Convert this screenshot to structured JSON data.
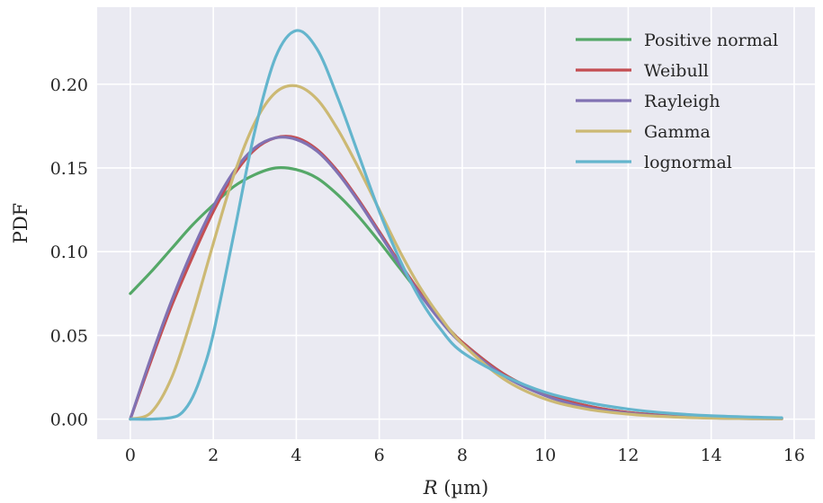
{
  "chart_data": {
    "type": "line",
    "xlabel_var": "R",
    "xlabel_unit": " (µm)",
    "ylabel": "PDF",
    "xlim": [
      -0.8,
      16.5
    ],
    "ylim": [
      -0.012,
      0.246
    ],
    "xticks": [
      0,
      2,
      4,
      6,
      8,
      10,
      12,
      14,
      16
    ],
    "yticks": [
      0.0,
      0.05,
      0.1,
      0.15,
      0.2
    ],
    "ytick_labels": [
      "0.00",
      "0.05",
      "0.10",
      "0.15",
      "0.20"
    ],
    "grid": true,
    "background": "#eaeaf2",
    "grid_color": "#ffffff",
    "legend_position": "top-right",
    "series": [
      {
        "name": "Positive normal",
        "color": "#55a868",
        "x": [
          0,
          0.5,
          1,
          1.5,
          2,
          2.5,
          3,
          3.5,
          4,
          4.5,
          5,
          5.5,
          6,
          6.5,
          7,
          7.5,
          8,
          9,
          10,
          11,
          12,
          13,
          14,
          15,
          15.7
        ],
        "y": [
          0.075,
          0.088,
          0.102,
          0.116,
          0.128,
          0.139,
          0.146,
          0.15,
          0.149,
          0.144,
          0.134,
          0.121,
          0.106,
          0.09,
          0.074,
          0.059,
          0.046,
          0.027,
          0.015,
          0.008,
          0.004,
          0.002,
          0.001,
          0.0005,
          0.0003
        ]
      },
      {
        "name": "Weibull",
        "color": "#c44e52",
        "x": [
          0,
          0.5,
          1,
          1.5,
          2,
          2.5,
          3,
          3.5,
          4,
          4.5,
          5,
          5.5,
          6,
          6.5,
          7,
          7.5,
          8,
          9,
          10,
          11,
          12,
          13,
          14,
          15,
          15.7
        ],
        "y": [
          0.0,
          0.035,
          0.068,
          0.097,
          0.124,
          0.146,
          0.161,
          0.168,
          0.168,
          0.161,
          0.148,
          0.131,
          0.112,
          0.093,
          0.075,
          0.059,
          0.046,
          0.027,
          0.015,
          0.008,
          0.004,
          0.002,
          0.001,
          0.0005,
          0.0003
        ]
      },
      {
        "name": "Rayleigh",
        "color": "#8172b3",
        "x": [
          0,
          0.5,
          1,
          1.5,
          2,
          2.5,
          3,
          3.5,
          4,
          4.5,
          5,
          5.5,
          6,
          6.5,
          7,
          7.5,
          8,
          9,
          10,
          11,
          12,
          13,
          14,
          15,
          15.7
        ],
        "y": [
          0.0,
          0.037,
          0.071,
          0.101,
          0.127,
          0.148,
          0.162,
          0.168,
          0.167,
          0.16,
          0.147,
          0.13,
          0.111,
          0.092,
          0.074,
          0.058,
          0.045,
          0.026,
          0.014,
          0.007,
          0.0035,
          0.0016,
          0.0007,
          0.0003,
          0.0001
        ]
      },
      {
        "name": "Gamma",
        "color": "#ccb974",
        "x": [
          0,
          0.5,
          1,
          1.5,
          2,
          2.5,
          3,
          3.5,
          4,
          4.5,
          5,
          5.5,
          6,
          6.5,
          7,
          7.5,
          8,
          9,
          10,
          11,
          12,
          13,
          14,
          15,
          15.7
        ],
        "y": [
          0.0,
          0.004,
          0.025,
          0.062,
          0.105,
          0.146,
          0.177,
          0.195,
          0.199,
          0.191,
          0.173,
          0.15,
          0.125,
          0.1,
          0.078,
          0.06,
          0.045,
          0.024,
          0.012,
          0.006,
          0.003,
          0.0014,
          0.0006,
          0.0003,
          0.0002
        ]
      },
      {
        "name": "lognormal",
        "color": "#64b5cd",
        "x": [
          0,
          0.5,
          1,
          1.25,
          1.5,
          1.75,
          2,
          2.5,
          3,
          3.5,
          4,
          4.5,
          5,
          5.5,
          6,
          6.5,
          7,
          7.5,
          8,
          9,
          10,
          11,
          12,
          13,
          14,
          15,
          15.7
        ],
        "y": [
          0.0,
          0.0,
          0.001,
          0.004,
          0.013,
          0.029,
          0.051,
          0.111,
          0.172,
          0.216,
          0.232,
          0.221,
          0.192,
          0.158,
          0.124,
          0.095,
          0.071,
          0.053,
          0.04,
          0.026,
          0.016,
          0.01,
          0.006,
          0.0035,
          0.002,
          0.0012,
          0.0008
        ]
      }
    ]
  }
}
